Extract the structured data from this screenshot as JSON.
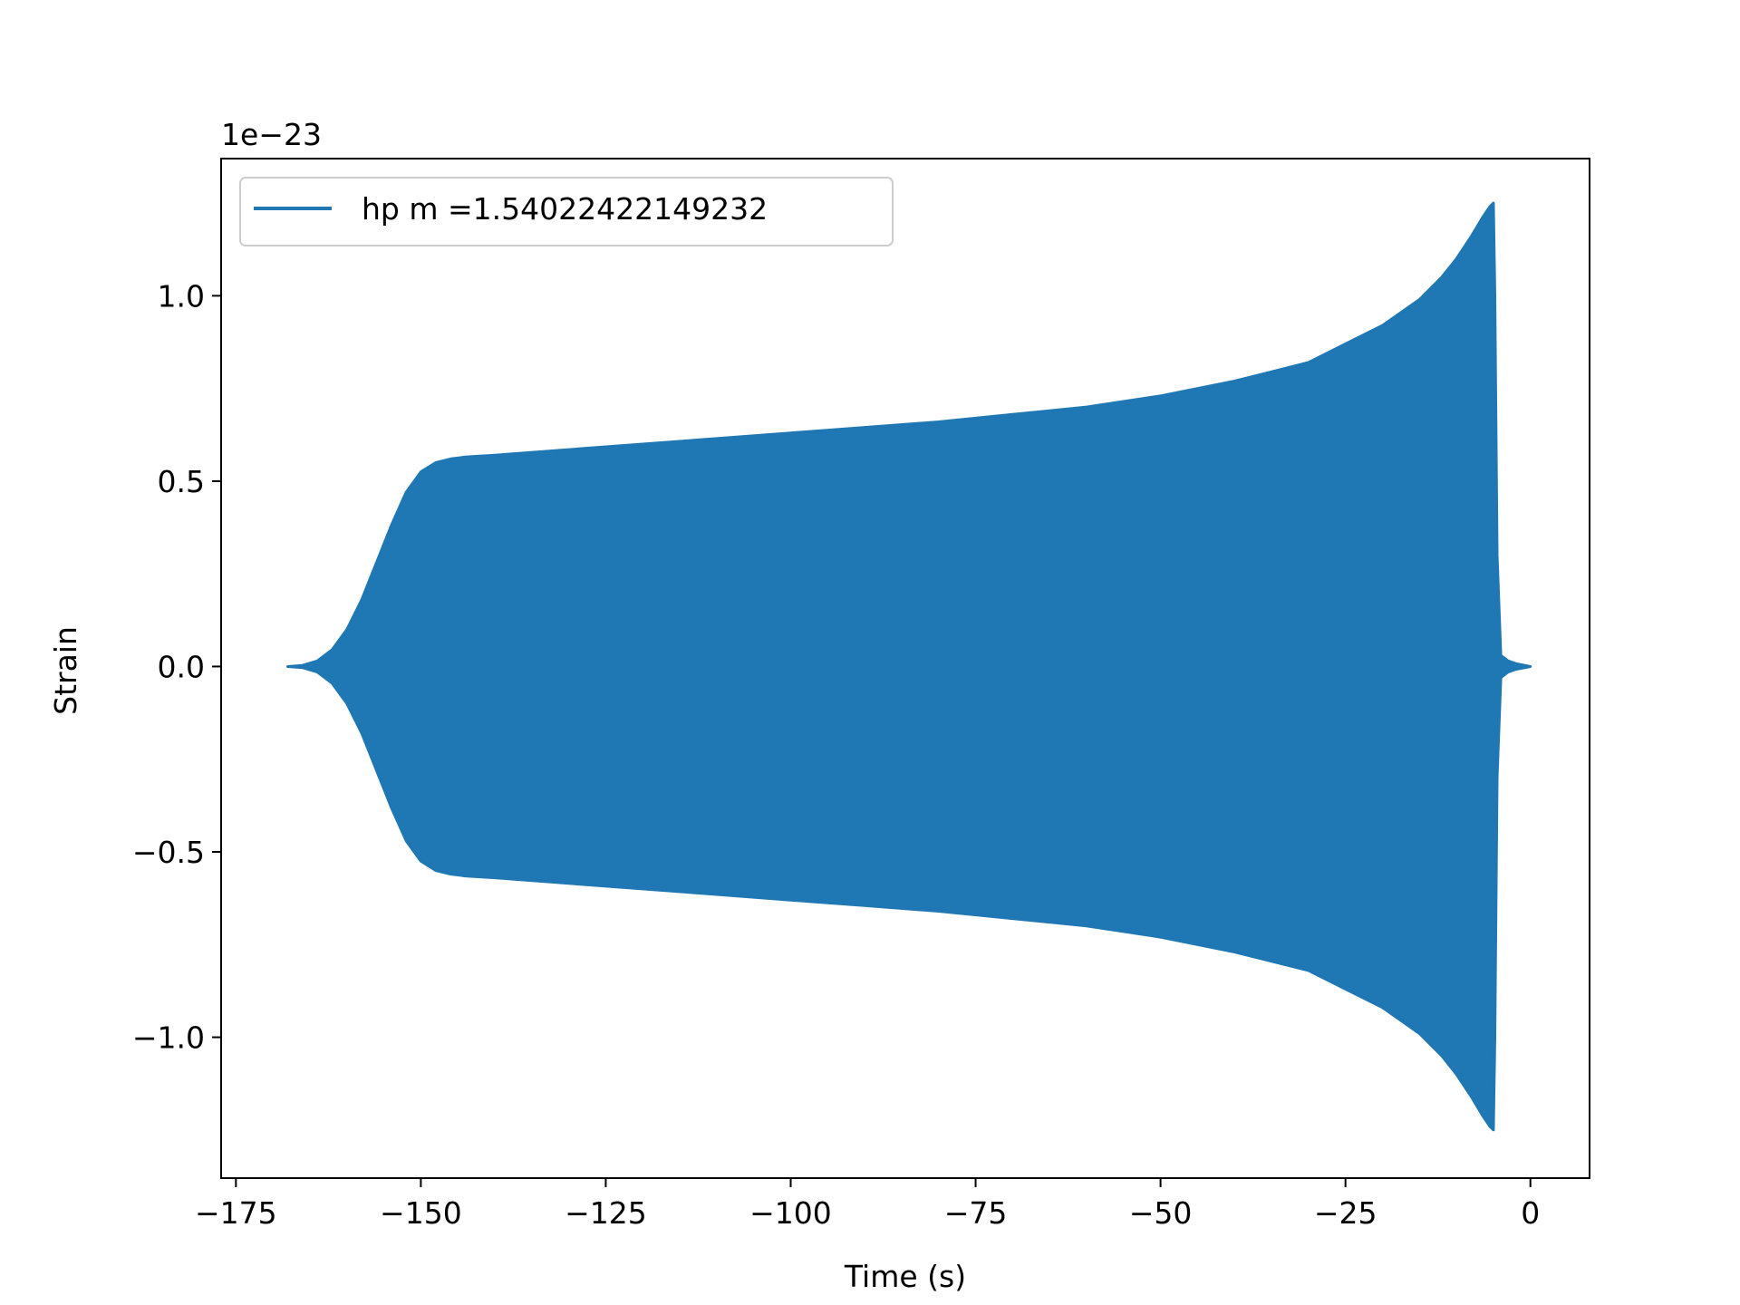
{
  "chart_data": {
    "type": "line",
    "title": "",
    "xlabel": "Time (s)",
    "ylabel": "Strain",
    "y_offset_text": "1e−23",
    "y_scale_factor": 1e-23,
    "xlim": [
      -177,
      8
    ],
    "ylim": [
      -1.38e-23,
      1.37e-23
    ],
    "xticks": [
      {
        "value": -175,
        "label": "−175"
      },
      {
        "value": -150,
        "label": "−150"
      },
      {
        "value": -125,
        "label": "−125"
      },
      {
        "value": -100,
        "label": "−100"
      },
      {
        "value": -75,
        "label": "−75"
      },
      {
        "value": -50,
        "label": "−50"
      },
      {
        "value": -25,
        "label": "−25"
      },
      {
        "value": 0,
        "label": "0"
      }
    ],
    "yticks": [
      {
        "value": 1e-23,
        "label": "1.0"
      },
      {
        "value": 5e-24,
        "label": "0.5"
      },
      {
        "value": 0.0,
        "label": "0.0"
      },
      {
        "value": -5e-24,
        "label": "−0.5"
      },
      {
        "value": -1e-23,
        "label": "−1.0"
      }
    ],
    "grid": false,
    "legend_position": "upper-left",
    "series": [
      {
        "name": "hp m =1.54022422149232",
        "color": "#1f77b4",
        "envelope": {
          "t": [
            -168,
            -166,
            -164,
            -162,
            -160,
            -158,
            -156,
            -154,
            -152,
            -150,
            -148,
            -146,
            -144,
            -140,
            -130,
            -120,
            -110,
            -100,
            -90,
            -80,
            -70,
            -60,
            -50,
            -40,
            -30,
            -25,
            -20,
            -15,
            -12,
            -10,
            -8,
            -6.5,
            -5.5,
            -5.0,
            -4.8,
            -4.5,
            -4.0,
            -3.0,
            -2.0,
            -1.0,
            0.0
          ],
          "amplitude": [
            0.0,
            3e-26,
            1.5e-25,
            4.5e-25,
            1e-24,
            1.8e-24,
            2.8e-24,
            3.8e-24,
            4.7e-24,
            5.25e-24,
            5.5e-24,
            5.6e-24,
            5.65e-24,
            5.7e-24,
            5.85e-24,
            6e-24,
            6.15e-24,
            6.3e-24,
            6.45e-24,
            6.6e-24,
            6.8e-24,
            7e-24,
            7.3e-24,
            7.7e-24,
            8.2e-24,
            8.7e-24,
            9.2e-24,
            9.9e-24,
            1.05e-23,
            1.1e-23,
            1.16e-23,
            1.21e-23,
            1.24e-23,
            1.25e-23,
            1e-23,
            3e-24,
            3e-25,
            1.5e-25,
            8e-26,
            4e-26,
            0.0
          ]
        }
      }
    ]
  }
}
